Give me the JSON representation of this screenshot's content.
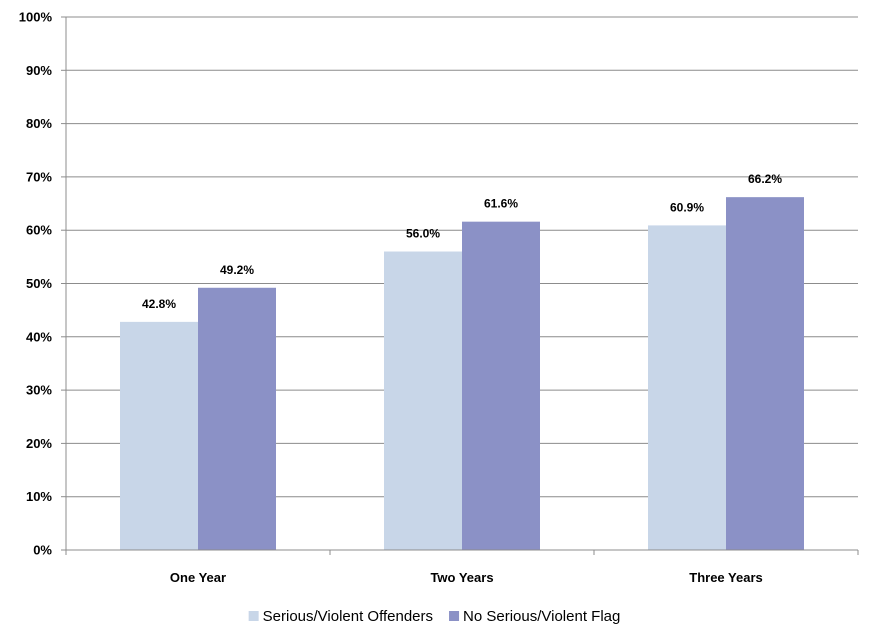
{
  "chart_data": {
    "type": "bar",
    "categories": [
      "One Year",
      "Two Years",
      "Three Years"
    ],
    "series": [
      {
        "name": "Serious/Violent Offenders",
        "values": [
          42.8,
          56.0,
          60.9
        ],
        "labels": [
          "42.8%",
          "56.0%",
          "60.9%"
        ],
        "color": "#c8d6e8"
      },
      {
        "name": "No Serious/Violent Flag",
        "values": [
          49.2,
          61.6,
          66.2
        ],
        "labels": [
          "49.2%",
          "61.6%",
          "66.2%"
        ],
        "color": "#8b91c6"
      }
    ],
    "ylim": [
      0,
      100
    ],
    "yticks": [
      0,
      10,
      20,
      30,
      40,
      50,
      60,
      70,
      80,
      90,
      100
    ],
    "ytick_labels": [
      "0%",
      "10%",
      "20%",
      "30%",
      "40%",
      "50%",
      "60%",
      "70%",
      "80%",
      "90%",
      "100%"
    ],
    "grid": true,
    "legend_position": "bottom"
  }
}
